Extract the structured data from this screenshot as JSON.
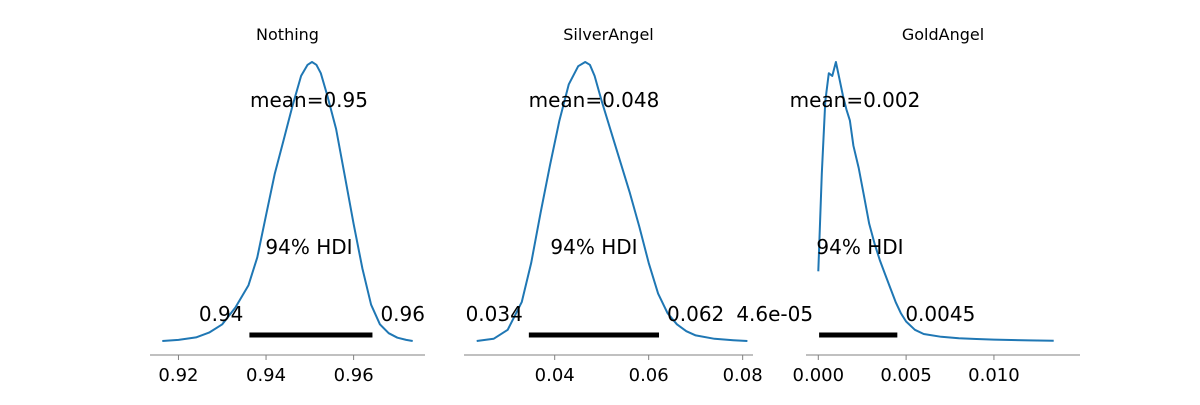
{
  "chart_data": [
    {
      "type": "line",
      "title": "Nothing",
      "mean_label": "mean=0.95",
      "hdi_label": "94% HDI",
      "hdi_low_label": "0.94",
      "hdi_high_label": "0.96",
      "hdi": [
        0.9362,
        0.9643
      ],
      "xlim": [
        0.9135,
        0.9763
      ],
      "ticks": [
        0.92,
        0.94,
        0.96
      ],
      "tick_labels": [
        "0.92",
        "0.94",
        "0.96"
      ],
      "density": {
        "x": [
          0.9163,
          0.92,
          0.924,
          0.927,
          0.93,
          0.933,
          0.936,
          0.938,
          0.94,
          0.942,
          0.944,
          0.946,
          0.948,
          0.9495,
          0.9505,
          0.9515,
          0.9525,
          0.954,
          0.956,
          0.958,
          0.96,
          0.962,
          0.964,
          0.966,
          0.968,
          0.97,
          0.972,
          0.9735
        ],
        "y": [
          0.0,
          0.004,
          0.013,
          0.03,
          0.06,
          0.12,
          0.2,
          0.3,
          0.45,
          0.6,
          0.72,
          0.84,
          0.95,
          0.99,
          1.0,
          0.99,
          0.96,
          0.88,
          0.76,
          0.59,
          0.42,
          0.26,
          0.13,
          0.06,
          0.028,
          0.012,
          0.004,
          0.0
        ]
      }
    },
    {
      "type": "line",
      "title": "SilverAngel",
      "mean_label": "mean=0.048",
      "hdi_label": "94% HDI",
      "hdi_low_label": "0.034",
      "hdi_high_label": "0.062",
      "hdi": [
        0.0345,
        0.0622
      ],
      "xlim": [
        0.0207,
        0.0822
      ],
      "ticks": [
        0.04,
        0.06,
        0.08
      ],
      "tick_labels": [
        "0.04",
        "0.06",
        "0.08"
      ],
      "density": {
        "x": [
          0.0234,
          0.027,
          0.03,
          0.033,
          0.035,
          0.037,
          0.039,
          0.041,
          0.043,
          0.045,
          0.0465,
          0.0475,
          0.0485,
          0.05,
          0.052,
          0.054,
          0.056,
          0.058,
          0.06,
          0.062,
          0.064,
          0.066,
          0.068,
          0.07,
          0.074,
          0.078,
          0.081
        ],
        "y": [
          0.0,
          0.008,
          0.04,
          0.14,
          0.28,
          0.46,
          0.63,
          0.79,
          0.92,
          0.985,
          1.0,
          0.99,
          0.95,
          0.86,
          0.75,
          0.64,
          0.53,
          0.41,
          0.28,
          0.17,
          0.1,
          0.06,
          0.035,
          0.02,
          0.008,
          0.003,
          0.0
        ]
      }
    },
    {
      "type": "line",
      "title": "GoldAngel",
      "mean_label": "mean=0.002",
      "hdi_label": "94% HDI",
      "hdi_low_label": "4.6e-05",
      "hdi_high_label": "0.0045",
      "hdi": [
        4.6e-05,
        0.0045
      ],
      "xlim": [
        -0.0007,
        0.0149
      ],
      "ticks": [
        0.0,
        0.005,
        0.01
      ],
      "tick_labels": [
        "0.000",
        "0.005",
        "0.010"
      ],
      "density": {
        "x": [
          0.0,
          0.0002,
          0.0004,
          0.0006,
          0.0008,
          0.001,
          0.0012,
          0.0014,
          0.0016,
          0.0018,
          0.002,
          0.0023,
          0.0026,
          0.0029,
          0.0032,
          0.0035,
          0.0038,
          0.0041,
          0.0044,
          0.0047,
          0.005,
          0.0055,
          0.006,
          0.007,
          0.008,
          0.009,
          0.01,
          0.012,
          0.0134
        ],
        "y": [
          0.25,
          0.6,
          0.86,
          0.96,
          0.95,
          1.0,
          0.94,
          0.88,
          0.83,
          0.79,
          0.7,
          0.62,
          0.52,
          0.42,
          0.35,
          0.29,
          0.24,
          0.19,
          0.14,
          0.1,
          0.07,
          0.04,
          0.025,
          0.015,
          0.01,
          0.007,
          0.005,
          0.002,
          0.001
        ]
      }
    }
  ],
  "colors": {
    "curve": "#1f77b4",
    "hdi_bar": "#000000",
    "axis": "#808080"
  }
}
